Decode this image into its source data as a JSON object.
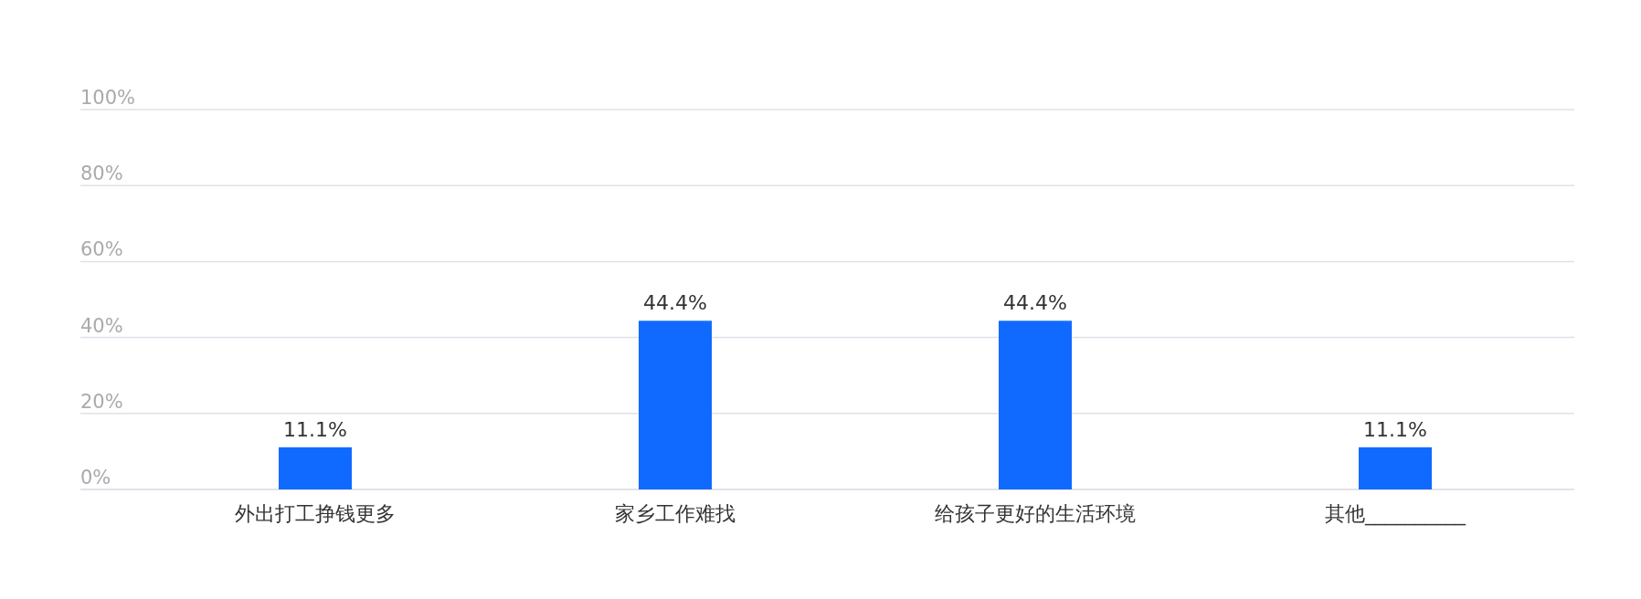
{
  "chart_data": {
    "type": "bar",
    "categories": [
      "外出打工挣钱更多",
      "家乡工作难找",
      "给孩子更好的生活环境",
      "其他__________"
    ],
    "values": [
      11.1,
      44.4,
      44.4,
      11.1
    ],
    "value_labels": [
      "11.1%",
      "44.4%",
      "44.4%",
      "11.1%"
    ],
    "color": "#106aff",
    "ylim": [
      0,
      100
    ],
    "yticks": [
      {
        "value": 0,
        "label": "0%"
      },
      {
        "value": 20,
        "label": "20%"
      },
      {
        "value": 40,
        "label": "40%"
      },
      {
        "value": 60,
        "label": "60%"
      },
      {
        "value": 80,
        "label": "80%"
      },
      {
        "value": 100,
        "label": "100%"
      }
    ],
    "grid": "y"
  }
}
